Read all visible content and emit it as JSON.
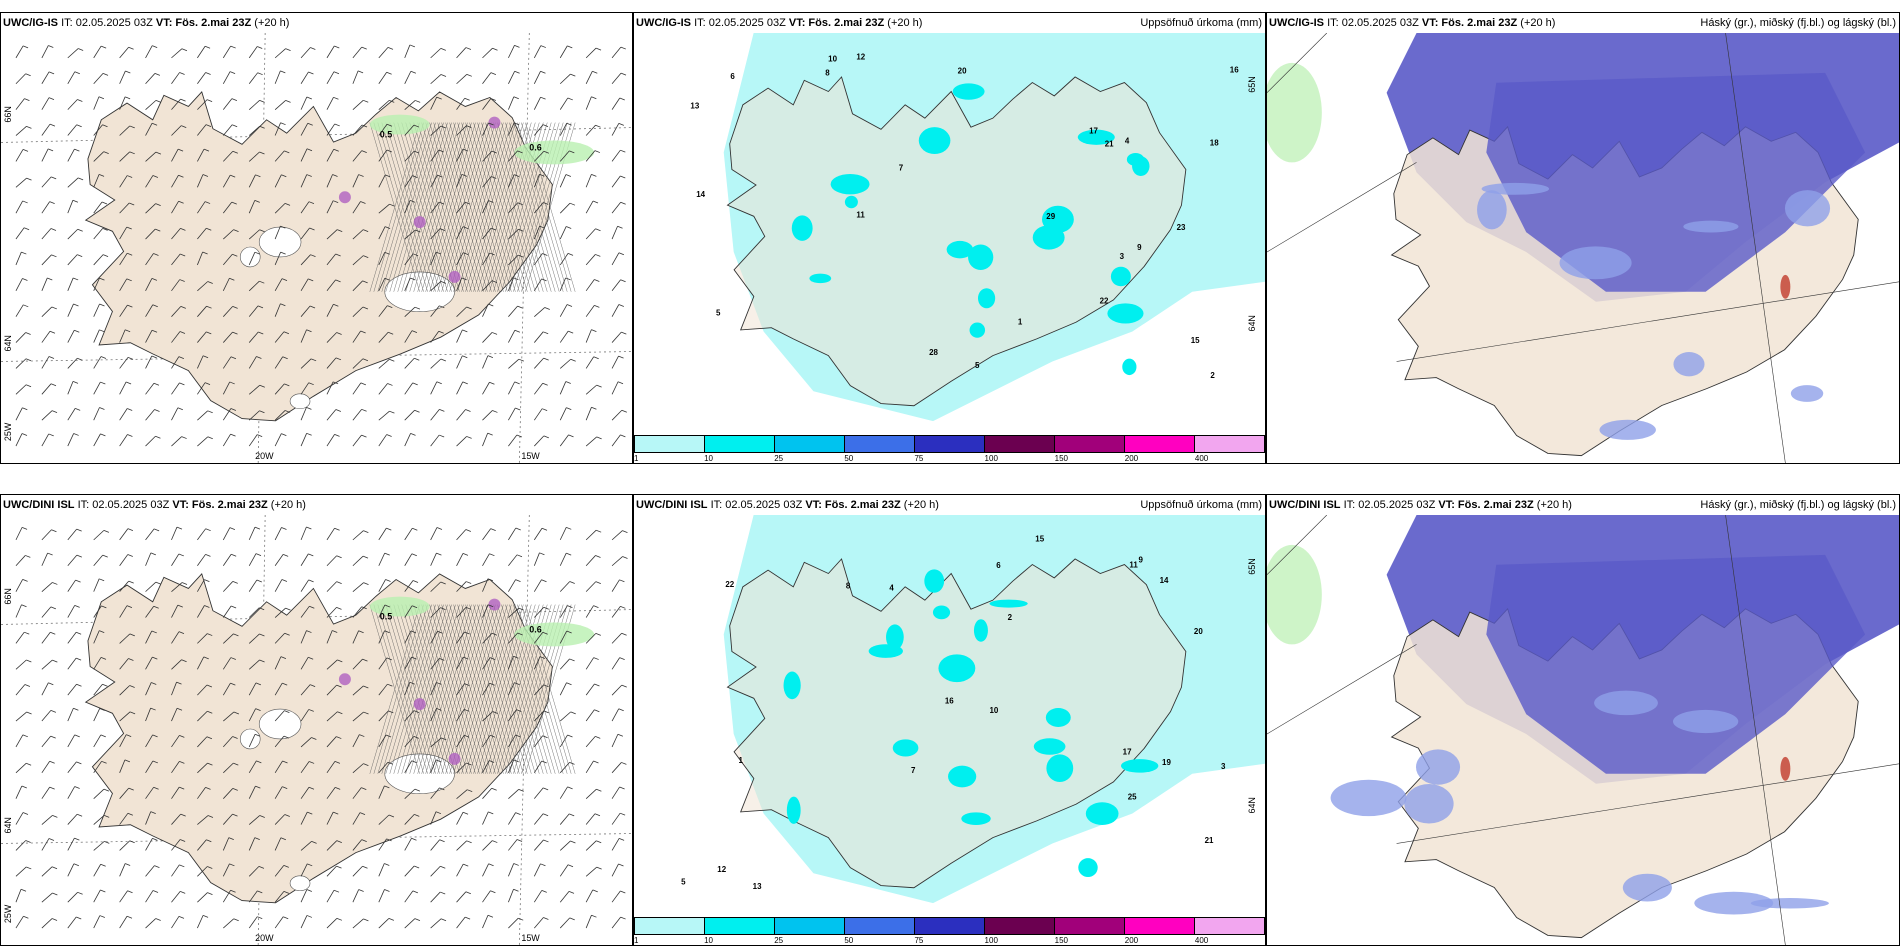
{
  "panels": [
    {
      "model": "UWC/IG-IS",
      "info": "IT: 02.05.2025 03Z",
      "vt_label": "VT:",
      "vt": "Fös. 2.mai 23Z",
      "lead": "(+20 h)",
      "right_title": "",
      "contours": [
        "0.5",
        "0.6"
      ],
      "lat_labels": [
        "66N",
        "64N",
        "25W"
      ],
      "lon_labels": [
        "20W",
        "15W"
      ]
    },
    {
      "model": "UWC/IG-IS",
      "info": "IT: 02.05.2025 03Z",
      "vt_label": "VT:",
      "vt": "Fös. 2.mai 23Z",
      "lead": "(+20 h)",
      "right_title": "Uppsöfnuð úrkoma (mm)",
      "lat_labels": [
        "65N",
        "64N"
      ]
    },
    {
      "model": "UWC/IG-IS",
      "info": "IT: 02.05.2025 03Z",
      "vt_label": "VT:",
      "vt": "Fös. 2.mai 23Z",
      "lead": "(+20 h)",
      "right_title": "Háský (gr.), miðský (fj.bl.) og lágský (bl.)"
    },
    {
      "model": "UWC/DINI ISL",
      "info": "IT: 02.05.2025 03Z",
      "vt_label": "VT:",
      "vt": "Fös. 2.mai 23Z",
      "lead": "(+20 h)",
      "right_title": "",
      "contours": [
        "0.5",
        "0.6"
      ],
      "lat_labels": [
        "66N",
        "64N",
        "25W"
      ],
      "lon_labels": [
        "20W",
        "15W"
      ]
    },
    {
      "model": "UWC/DINI ISL",
      "info": "IT: 02.05.2025 03Z",
      "vt_label": "VT:",
      "vt": "Fös. 2.mai 23Z",
      "lead": "(+20 h)",
      "right_title": "Uppsöfnuð úrkoma (mm)",
      "lat_labels": [
        "65N",
        "64N"
      ]
    },
    {
      "model": "UWC/DINI ISL",
      "info": "IT: 02.05.2025 03Z",
      "vt_label": "VT:",
      "vt": "Fös. 2.mai 23Z",
      "lead": "(+20 h)",
      "right_title": "Háský (gr.), miðský (fj.bl.) og lágský (bl.)"
    }
  ],
  "colorbar": {
    "labels": [
      "1",
      "10",
      "25",
      "50",
      "75",
      "100",
      "150",
      "200",
      "400"
    ],
    "colors": [
      "#b7f7f7",
      "#00efef",
      "#00c3ef",
      "#3c6fe8",
      "#2b2fbf",
      "#6b0050",
      "#a1007a",
      "#ff00c0",
      "#f2a6ef"
    ]
  },
  "precip_numbers_top": [
    "1",
    "2",
    "3",
    "4",
    "5",
    "5",
    "6",
    "7",
    "8",
    "9",
    "10",
    "11",
    "12",
    "13",
    "14",
    "15",
    "16",
    "17",
    "18",
    "20",
    "21",
    "22",
    "23",
    "28",
    "29"
  ],
  "precip_numbers_bottom": [
    "1",
    "2",
    "3",
    "4",
    "5",
    "6",
    "7",
    "8",
    "9",
    "10",
    "11",
    "12",
    "13",
    "14",
    "15",
    "16",
    "17",
    "19",
    "20",
    "21",
    "22",
    "25"
  ],
  "colors": {
    "land": "#f1e4d5",
    "ocean": "#ffffff",
    "precip_light": "#b7f7f7",
    "precip": "#00efef",
    "cloud_high": "#5a5ac8",
    "cloud_mid": "#8fa0e8",
    "frame": "#000000"
  }
}
